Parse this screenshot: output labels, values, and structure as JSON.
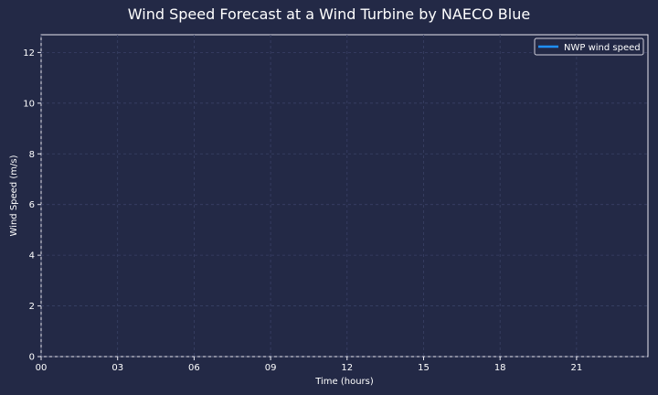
{
  "chart_data": {
    "type": "line",
    "title": "Wind Speed Forecast at a Wind Turbine by NAECO Blue",
    "xlabel": "Time (hours)",
    "ylabel": "Wind Speed (m/s)",
    "xlim": [
      0,
      23.8
    ],
    "ylim": [
      0,
      12.7
    ],
    "x_ticks": [
      {
        "value": 0,
        "label": "00"
      },
      {
        "value": 3,
        "label": "03"
      },
      {
        "value": 6,
        "label": "06"
      },
      {
        "value": 9,
        "label": "09"
      },
      {
        "value": 12,
        "label": "12"
      },
      {
        "value": 15,
        "label": "15"
      },
      {
        "value": 18,
        "label": "18"
      },
      {
        "value": 21,
        "label": "21"
      }
    ],
    "y_ticks": [
      {
        "value": 0,
        "label": "0"
      },
      {
        "value": 2,
        "label": "2"
      },
      {
        "value": 4,
        "label": "4"
      },
      {
        "value": 6,
        "label": "6"
      },
      {
        "value": 8,
        "label": "8"
      },
      {
        "value": 10,
        "label": "10"
      },
      {
        "value": 12,
        "label": "12"
      }
    ],
    "grid": true,
    "legend": "top-right",
    "series": [
      {
        "name": "NWP wind speed",
        "color": "#1e90ff",
        "x": [],
        "values": []
      }
    ],
    "colors": {
      "background": "#232946",
      "axis": "#e8e8f0",
      "grid": "#3a4166",
      "text": "#ffffff"
    }
  }
}
